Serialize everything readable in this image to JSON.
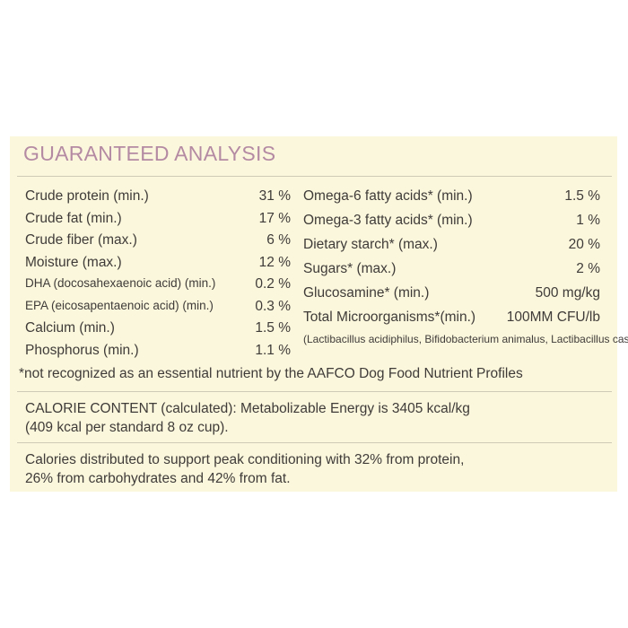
{
  "title": "GUARANTEED ANALYSIS",
  "left_rows": [
    {
      "label": "Crude protein (min.)",
      "value": "31 %"
    },
    {
      "label": "Crude fat (min.)",
      "value": "17 %"
    },
    {
      "label": "Crude fiber (max.)",
      "value": "6 %"
    },
    {
      "label": "Moisture (max.)",
      "value": "12 %"
    },
    {
      "label": "DHA (docosahexaenoic acid) (min.)",
      "value": "0.2 %"
    },
    {
      "label": "EPA (eicosapentaenoic acid) (min.)",
      "value": "0.3 %"
    },
    {
      "label": "Calcium (min.)",
      "value": "1.5 %"
    },
    {
      "label": "Phosphorus (min.)",
      "value": "1.1 %"
    }
  ],
  "right_rows": [
    {
      "label": "Omega-6 fatty acids* (min.)",
      "value": "1.5 %"
    },
    {
      "label": "Omega-3 fatty acids* (min.)",
      "value": "1 %"
    },
    {
      "label": "Dietary starch* (max.)",
      "value": "20 %"
    },
    {
      "label": "Sugars* (max.)",
      "value": "2 %"
    },
    {
      "label": "Glucosamine* (min.)",
      "value": "500 mg/kg"
    }
  ],
  "microorganisms": {
    "label": "Total Microorganisms*(min.)",
    "value": "100MM CFU/lb",
    "names": "(Lactibacillus acidiphilus, Bifidobacterium animalus, Lactibacillus casei)"
  },
  "footnote": "*not recognized as an essential nutrient by the AAFCO Dog Food Nutrient Profiles",
  "calorie": {
    "line1": "CALORIE CONTENT (calculated): Metabolizable Energy is 3405 kcal/kg",
    "line2": "(409 kcal per standard 8 oz cup)."
  },
  "distribution": {
    "line1": "Calories distributed to support peak conditioning with 32% from protein,",
    "line2": "26% from carbohydrates and 42% from fat."
  }
}
